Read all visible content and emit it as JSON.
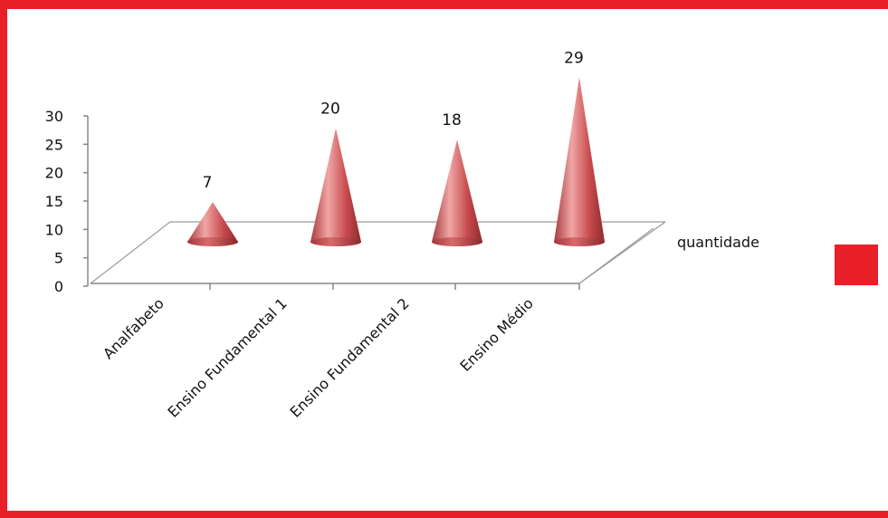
{
  "chart_data": {
    "type": "bar",
    "shape": "3d-cone",
    "categories": [
      "Analfabeto",
      "Ensino Fundamental 1",
      "Ensino Fundamental 2",
      "Ensino Médio"
    ],
    "series": [
      {
        "name": "quantidade",
        "values": [
          7,
          20,
          18,
          29
        ]
      }
    ],
    "data_labels": [
      "7",
      "20",
      "18",
      "29"
    ],
    "y_ticks": [
      "0",
      "5",
      "10",
      "15",
      "20",
      "25",
      "30"
    ],
    "ylim": [
      0,
      30
    ],
    "title": "",
    "xlabel": "",
    "ylabel": "",
    "legend_position": "right",
    "grid": false,
    "colors": {
      "cone_light": "#f0a6a6",
      "cone_mid": "#d65a5a",
      "cone_dark": "#9c2f33",
      "legend_swatch": "#e8202a",
      "frame": "#e8202a"
    }
  }
}
